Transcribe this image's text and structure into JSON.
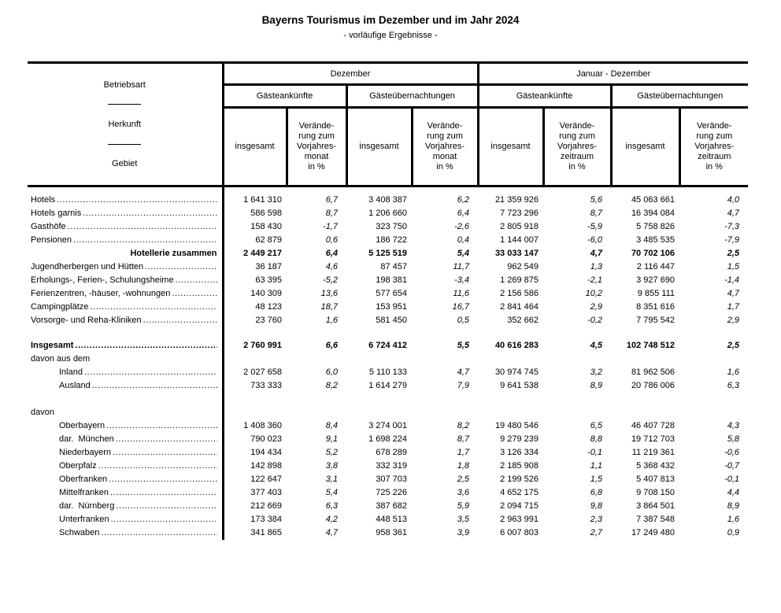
{
  "title": "Bayerns Tourismus im Dezember und im Jahr 2024",
  "subtitle": "- vorläufige Ergebnisse -",
  "header": {
    "stub_lines": [
      "Betriebsart",
      "Herkunft",
      "Gebiet"
    ],
    "periods": [
      {
        "label": "Dezember",
        "cols": [
          "Gästeankünfte",
          "Gästeübernachtungen"
        ],
        "measures": [
          "insgesamt",
          "Verände-\nrung zum\nVorjahres-\nmonat\nin %"
        ]
      },
      {
        "label": "Januar - Dezember",
        "cols": [
          "Gästeankünfte",
          "Gästeübernachtungen"
        ],
        "measures": [
          "insgesamt",
          "Verände-\nrung zum\nVorjahres-\nzeitraum\nin %"
        ]
      }
    ]
  },
  "rows": [
    {
      "type": "data",
      "label": "Hotels",
      "indent": 0,
      "dots": true,
      "bold": false,
      "align": "left",
      "values": [
        "1 641 310",
        "6,7",
        "3 408 387",
        "6,2",
        "21 359 926",
        "5,6",
        "45 063 661",
        "4,0"
      ]
    },
    {
      "type": "data",
      "label": "Hotels garnis",
      "indent": 0,
      "dots": true,
      "bold": false,
      "align": "left",
      "values": [
        "586 598",
        "8,7",
        "1 206 660",
        "6,4",
        "7 723 296",
        "8,7",
        "16 394 084",
        "4,7"
      ]
    },
    {
      "type": "data",
      "label": "Gasthöfe",
      "indent": 0,
      "dots": true,
      "bold": false,
      "align": "left",
      "values": [
        "158 430",
        "-1,7",
        "323 750",
        "-2,6",
        "2 805 918",
        "-5,9",
        "5 758 826",
        "-7,3"
      ]
    },
    {
      "type": "data",
      "label": "Pensionen",
      "indent": 0,
      "dots": true,
      "bold": false,
      "align": "left",
      "values": [
        "62 879",
        "0,6",
        "186 722",
        "0,4",
        "1 144 007",
        "-6,0",
        "3 485 535",
        "-7,9"
      ]
    },
    {
      "type": "data",
      "label": "Hotellerie zusammen",
      "indent": 0,
      "dots": false,
      "bold": true,
      "align": "right",
      "values": [
        "2 449 217",
        "6,4",
        "5 125 519",
        "5,4",
        "33 033 147",
        "4,7",
        "70 702 106",
        "2,5"
      ]
    },
    {
      "type": "data",
      "label": "Jugendherbergen und Hütten",
      "indent": 0,
      "dots": true,
      "bold": false,
      "align": "left",
      "values": [
        "36 187",
        "4,6",
        "87 457",
        "11,7",
        "962 549",
        "1,3",
        "2 116 447",
        "1,5"
      ]
    },
    {
      "type": "data",
      "label": "Erholungs-, Ferien-, Schulungsheime",
      "indent": 0,
      "dots": true,
      "bold": false,
      "align": "left",
      "values": [
        "63 395",
        "-5,2",
        "198 381",
        "-3,4",
        "1 269 875",
        "-2,1",
        "3 927 690",
        "-1,4"
      ]
    },
    {
      "type": "data",
      "label": "Ferienzentren, -häuser, -wohnungen",
      "indent": 0,
      "dots": true,
      "bold": false,
      "align": "left",
      "values": [
        "140 309",
        "13,6",
        "577 654",
        "11,6",
        "2 156 586",
        "10,2",
        "9 855 111",
        "4,7"
      ]
    },
    {
      "type": "data",
      "label": "Campingplätze",
      "indent": 0,
      "dots": true,
      "bold": false,
      "align": "left",
      "values": [
        "48 123",
        "18,7",
        "153 951",
        "16,7",
        "2 841 464",
        "2,9",
        "8 351 616",
        "1,7"
      ]
    },
    {
      "type": "data",
      "label": "Vorsorge- und Reha-Kliniken",
      "indent": 0,
      "dots": true,
      "bold": false,
      "align": "left",
      "values": [
        "23 760",
        "1,6",
        "581 450",
        "0,5",
        "352 662",
        "-0,2",
        "7 795 542",
        "2,9"
      ]
    },
    {
      "type": "spacer",
      "h": 15
    },
    {
      "type": "data",
      "label": "Insgesamt",
      "indent": 0,
      "dots": true,
      "bold": true,
      "align": "left",
      "values": [
        "2 760 991",
        "6,6",
        "6 724 412",
        "5,5",
        "40 616 283",
        "4,5",
        "102 748 512",
        "2,5"
      ]
    },
    {
      "type": "data",
      "label": "davon aus dem",
      "indent": 0,
      "dots": false,
      "bold": false,
      "align": "left",
      "values": null
    },
    {
      "type": "data",
      "label": "Inland",
      "indent": 1,
      "dots": true,
      "bold": false,
      "align": "left",
      "values": [
        "2 027 658",
        "6,0",
        "5 110 133",
        "4,7",
        "30 974 745",
        "3,2",
        "81 962 506",
        "1,6"
      ]
    },
    {
      "type": "data",
      "label": "Ausland",
      "indent": 1,
      "dots": true,
      "bold": false,
      "align": "left",
      "values": [
        "733 333",
        "8,2",
        "1 614 279",
        "7,9",
        "9 641 538",
        "8,9",
        "20 786 006",
        "6,3"
      ]
    },
    {
      "type": "spacer",
      "h": 17
    },
    {
      "type": "data",
      "label": "davon",
      "indent": 0,
      "dots": false,
      "bold": false,
      "align": "left",
      "values": null
    },
    {
      "type": "data",
      "label": "Oberbayern",
      "indent": 1,
      "dots": true,
      "bold": false,
      "align": "left",
      "values": [
        "1 408 360",
        "8,4",
        "3 274 001",
        "8,2",
        "19 480 546",
        "6,5",
        "46 407 728",
        "4,3"
      ]
    },
    {
      "type": "data",
      "label": "dar.  München",
      "indent": 1,
      "dots": true,
      "bold": false,
      "align": "left",
      "values": [
        "790 023",
        "9,1",
        "1 698 224",
        "8,7",
        "9 279 239",
        "8,8",
        "19 712 703",
        "5,8"
      ]
    },
    {
      "type": "data",
      "label": "Niederbayern",
      "indent": 1,
      "dots": true,
      "bold": false,
      "align": "left",
      "values": [
        "194 434",
        "5,2",
        "678 289",
        "1,7",
        "3 126 334",
        "-0,1",
        "11 219 361",
        "-0,6"
      ]
    },
    {
      "type": "data",
      "label": "Oberpfalz",
      "indent": 1,
      "dots": true,
      "bold": false,
      "align": "left",
      "values": [
        "142 898",
        "3,8",
        "332 319",
        "1,8",
        "2 185 908",
        "1,1",
        "5 368 432",
        "-0,7"
      ]
    },
    {
      "type": "data",
      "label": "Oberfranken",
      "indent": 1,
      "dots": true,
      "bold": false,
      "align": "left",
      "values": [
        "122 647",
        "3,1",
        "307 703",
        "2,5",
        "2 199 526",
        "1,5",
        "5 407 813",
        "-0,1"
      ]
    },
    {
      "type": "data",
      "label": "Mittelfranken",
      "indent": 1,
      "dots": true,
      "bold": false,
      "align": "left",
      "values": [
        "377 403",
        "5,4",
        "725 226",
        "3,6",
        "4 652 175",
        "6,8",
        "9 708 150",
        "4,4"
      ]
    },
    {
      "type": "data",
      "label": "dar.  Nürnberg",
      "indent": 1,
      "dots": true,
      "bold": false,
      "align": "left",
      "values": [
        "212 669",
        "6,3",
        "387 682",
        "5,9",
        "2 094 715",
        "9,8",
        "3 864 501",
        "8,9"
      ]
    },
    {
      "type": "data",
      "label": "Unterfranken",
      "indent": 1,
      "dots": true,
      "bold": false,
      "align": "left",
      "values": [
        "173 384",
        "4,2",
        "448 513",
        "3,5",
        "2 963 991",
        "2,3",
        "7 387 548",
        "1,6"
      ]
    },
    {
      "type": "data",
      "label": "Schwaben",
      "indent": 1,
      "dots": true,
      "bold": false,
      "align": "left",
      "values": [
        "341 865",
        "4,7",
        "958 361",
        "3,9",
        "6 007 803",
        "2,7",
        "17 249 480",
        "0,9"
      ]
    }
  ]
}
